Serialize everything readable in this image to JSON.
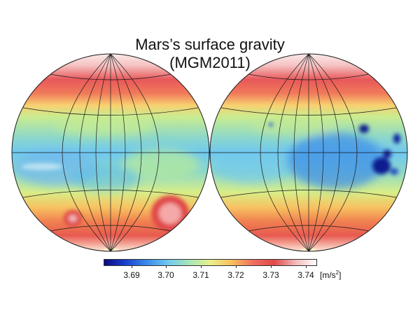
{
  "title": {
    "line1": "Mars’s surface gravity",
    "line2": "(MGM2011)"
  },
  "colorbar": {
    "ticks": [
      "3.69",
      "3.70",
      "3.71",
      "3.72",
      "3.73",
      "3.74"
    ],
    "unit_prefix": "[m/s",
    "unit_exp": "2",
    "unit_suffix": "]",
    "colors": [
      "#0a0a80",
      "#1a3fd0",
      "#3a8be8",
      "#6fc8f0",
      "#a8e6b8",
      "#e8f08a",
      "#f8c060",
      "#f07060",
      "#e04848",
      "#f2b8b8",
      "#ffffff"
    ]
  },
  "palette": {
    "band_green": "#b6e89a",
    "cyan": "#6fc8f0",
    "blue": "#3a8be8",
    "deep_blue": "#0a1a90",
    "red": "#e04848",
    "pink": "#f2b8b8",
    "orange": "#f8b060"
  }
}
